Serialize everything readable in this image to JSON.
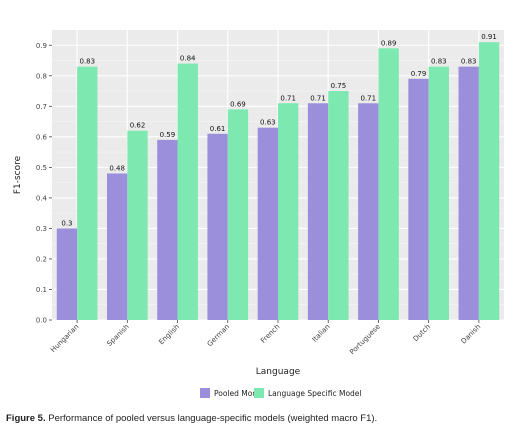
{
  "chart_data": {
    "type": "bar",
    "xlabel": "Language",
    "ylabel": "F1-score",
    "ylim": [
      0,
      0.95
    ],
    "yticks": [
      "0.0",
      "0.1",
      "0.2",
      "0.3",
      "0.4",
      "0.5",
      "0.6",
      "0.7",
      "0.8",
      "0.9"
    ],
    "grid": true,
    "legend_position": "bottom",
    "categories": [
      "Hungarian",
      "Spanish",
      "English",
      "German",
      "French",
      "Italian",
      "Portuguese",
      "Dutch",
      "Danish"
    ],
    "series": [
      {
        "name": "Pooled Model",
        "color": "#9b8fdc",
        "values": [
          0.3,
          0.48,
          0.59,
          0.61,
          0.63,
          0.71,
          0.71,
          0.79,
          0.83
        ]
      },
      {
        "name": "Language Specific Model",
        "color": "#7de8b0",
        "values": [
          0.83,
          0.62,
          0.84,
          0.69,
          0.71,
          0.75,
          0.89,
          0.83,
          0.91
        ]
      }
    ]
  },
  "caption": {
    "label": "Figure 5.",
    "text": "Performance of pooled versus language-specific models (weighted macro F1)."
  }
}
